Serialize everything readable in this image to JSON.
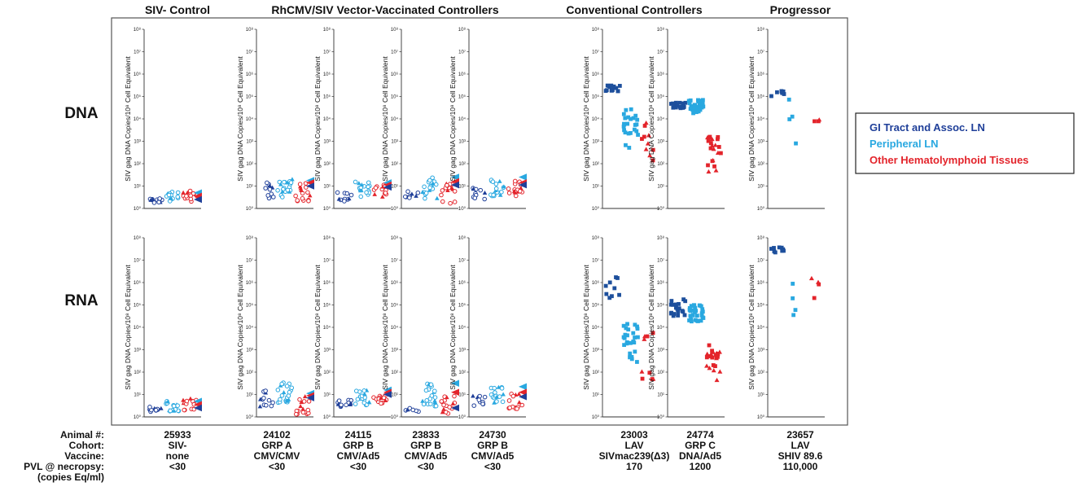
{
  "group_titles": [
    "SIV- Control",
    "RhCMV/SIV Vector-Vaccinated Controllers",
    "Conventional Controllers",
    "Progressor"
  ],
  "row_labels": [
    "DNA",
    "RNA"
  ],
  "y_tick_labels": [
    "10⁰",
    "10¹",
    "10²",
    "10³",
    "10⁴",
    "10⁵",
    "10⁶",
    "10⁷",
    "10⁸"
  ],
  "y_axis_label": "SIV gag DNA Copies/10⁸ Cell Equivalent",
  "legend": [
    {
      "label": "GI Tract and Assoc. LN",
      "color": "#1f3f99"
    },
    {
      "label": "Peripheral LN",
      "color": "#29a8e0"
    },
    {
      "label": "Other Hematolymphoid Tissues",
      "color": "#e3242b"
    }
  ],
  "footer": {
    "row_labels": [
      "Animal #:",
      "Cohort:",
      "Vaccine:",
      "PVL @ necropsy:",
      "(copies Eq/ml)"
    ],
    "columns": [
      {
        "animal": "25933",
        "cohort": "SIV-",
        "vaccine": "none",
        "pvl": "<30"
      },
      {
        "animal": "24102",
        "cohort": "GRP A",
        "vaccine": "CMV/CMV",
        "pvl": "<30"
      },
      {
        "animal": "24115",
        "cohort": "GRP B",
        "vaccine": "CMV/Ad5",
        "pvl": "<30"
      },
      {
        "animal": "23833",
        "cohort": "GRP B",
        "vaccine": "CMV/Ad5",
        "pvl": "<30"
      },
      {
        "animal": "24730",
        "cohort": "GRP B",
        "vaccine": "CMV/Ad5",
        "pvl": "<30"
      },
      {
        "animal": "23003",
        "cohort": "LAV",
        "vaccine": "SIVmac239(Δ3)",
        "pvl": "170"
      },
      {
        "animal": "24774",
        "cohort": "GRP C",
        "vaccine": "DNA/Ad5",
        "pvl": "1200"
      },
      {
        "animal": "23657",
        "cohort": "LAV",
        "vaccine": "SHIV 89.6",
        "pvl": "110,000"
      }
    ]
  },
  "colors": {
    "gi": "#1f3f99",
    "gi_dark": "#1d4f9c",
    "pln": "#29a8e0",
    "other": "#e3242b"
  },
  "chart_data": {
    "type": "scatter",
    "y_scale": "log10",
    "ylim": [
      1,
      100000000
    ],
    "grid": false,
    "legend_position": "right",
    "series": [
      "GI Tract and Assoc. LN",
      "Peripheral LN",
      "Other Hematolymphoid Tissues"
    ],
    "panels": [
      {
        "animal": "25933",
        "row": "DNA",
        "marker": "open-circle",
        "gi": {
          "center_log": 0.35,
          "spread": 0.12,
          "count": 12
        },
        "pln": {
          "center_log": 0.5,
          "spread": 0.25,
          "count": 16
        },
        "other": {
          "center_log": 0.6,
          "spread": 0.3,
          "count": 14
        },
        "arrows": [
          0.7,
          0.55,
          0.4
        ]
      },
      {
        "animal": "24102",
        "row": "DNA",
        "marker": "open-circle",
        "gi": {
          "center_log": 0.8,
          "spread": 0.35,
          "count": 10
        },
        "pln": {
          "center_log": 1.0,
          "spread": 0.5,
          "count": 20
        },
        "other": {
          "center_log": 0.7,
          "spread": 0.45,
          "count": 16
        },
        "arrows": [
          1.25,
          1.15,
          1.0
        ]
      },
      {
        "animal": "24115",
        "row": "DNA",
        "marker": "open-circle",
        "gi": {
          "center_log": 0.55,
          "spread": 0.3,
          "count": 10
        },
        "pln": {
          "center_log": 0.85,
          "spread": 0.35,
          "count": 18
        },
        "other": {
          "center_log": 0.8,
          "spread": 0.3,
          "count": 14
        },
        "arrows": [
          1.15,
          1.05,
          0.95
        ]
      },
      {
        "animal": "23833",
        "row": "DNA",
        "marker": "open-circle",
        "gi": {
          "center_log": 0.65,
          "spread": 0.2,
          "count": 8
        },
        "pln": {
          "center_log": 0.9,
          "spread": 0.5,
          "count": 20
        },
        "other": {
          "center_log": 0.65,
          "spread": 0.45,
          "count": 16
        },
        "arrows": [
          1.4,
          1.2,
          1.05
        ]
      },
      {
        "animal": "24730",
        "row": "DNA",
        "marker": "open-circle",
        "gi": {
          "center_log": 0.75,
          "spread": 0.35,
          "count": 10
        },
        "pln": {
          "center_log": 0.95,
          "spread": 0.4,
          "count": 18
        },
        "other": {
          "center_log": 0.85,
          "spread": 0.4,
          "count": 16
        },
        "arrows": [
          1.4,
          1.15,
          1.05
        ]
      },
      {
        "animal": "23003",
        "row": "DNA",
        "marker": "filled-square",
        "gi": {
          "center_log": 5.35,
          "spread": 0.15,
          "count": 14
        },
        "pln": {
          "center_log": 3.6,
          "spread": 0.9,
          "count": 24
        },
        "other": {
          "center_log": 3.0,
          "spread": 1.0,
          "count": 10
        },
        "arrows": []
      },
      {
        "animal": "24774",
        "row": "DNA",
        "marker": "filled-square",
        "gi": {
          "center_log": 4.6,
          "spread": 0.15,
          "count": 20
        },
        "pln": {
          "center_log": 4.55,
          "spread": 0.3,
          "count": 34
        },
        "other": {
          "center_log": 2.4,
          "spread": 0.9,
          "count": 22
        },
        "arrows": []
      },
      {
        "animal": "23657",
        "row": "DNA",
        "marker": "filled-square",
        "gi": {
          "center_log": 5.1,
          "spread": 0.15,
          "count": 7
        },
        "pln": {
          "center_log": 4.0,
          "spread": 1.1,
          "count": 4
        },
        "other": {
          "center_log": 4.05,
          "spread": 0.2,
          "count": 3
        },
        "arrows": []
      },
      {
        "animal": "25933",
        "row": "RNA",
        "marker": "open-circle",
        "gi": {
          "center_log": 0.35,
          "spread": 0.12,
          "count": 12
        },
        "pln": {
          "center_log": 0.5,
          "spread": 0.25,
          "count": 16
        },
        "other": {
          "center_log": 0.6,
          "spread": 0.3,
          "count": 14
        },
        "arrows": [
          0.7,
          0.55,
          0.4
        ]
      },
      {
        "animal": "24102",
        "row": "RNA",
        "marker": "open-circle",
        "gi": {
          "center_log": 0.8,
          "spread": 0.4,
          "count": 12
        },
        "pln": {
          "center_log": 1.0,
          "spread": 0.55,
          "count": 22
        },
        "other": {
          "center_log": 0.55,
          "spread": 0.45,
          "count": 16
        },
        "arrows": [
          1.05,
          0.95,
          0.85
        ]
      },
      {
        "animal": "24115",
        "row": "RNA",
        "marker": "open-circle",
        "gi": {
          "center_log": 0.5,
          "spread": 0.25,
          "count": 12
        },
        "pln": {
          "center_log": 0.85,
          "spread": 0.35,
          "count": 20
        },
        "other": {
          "center_log": 0.8,
          "spread": 0.2,
          "count": 16
        },
        "arrows": [
          1.2,
          1.1,
          1.0
        ]
      },
      {
        "animal": "23833",
        "row": "RNA",
        "marker": "open-circle",
        "gi": {
          "center_log": 0.3,
          "spread": 0.1,
          "count": 6
        },
        "pln": {
          "center_log": 1.0,
          "spread": 0.55,
          "count": 22
        },
        "other": {
          "center_log": 0.55,
          "spread": 0.4,
          "count": 16
        },
        "arrows": [
          1.5,
          1.1,
          0.4
        ]
      },
      {
        "animal": "24730",
        "row": "RNA",
        "marker": "open-circle",
        "gi": {
          "center_log": 0.7,
          "spread": 0.3,
          "count": 10
        },
        "pln": {
          "center_log": 0.95,
          "spread": 0.4,
          "count": 16
        },
        "other": {
          "center_log": 0.7,
          "spread": 0.35,
          "count": 14
        },
        "arrows": [
          1.35,
          1.1,
          0.9
        ]
      },
      {
        "animal": "23003",
        "row": "RNA",
        "marker": "filled-square",
        "gi": {
          "center_log": 5.7,
          "spread": 0.6,
          "count": 9
        },
        "pln": {
          "center_log": 3.3,
          "spread": 1.0,
          "count": 26
        },
        "other": {
          "center_log": 2.8,
          "spread": 1.2,
          "count": 10
        },
        "arrows": []
      },
      {
        "animal": "24774",
        "row": "RNA",
        "marker": "filled-square",
        "gi": {
          "center_log": 4.9,
          "spread": 0.4,
          "count": 20
        },
        "pln": {
          "center_log": 4.6,
          "spread": 0.4,
          "count": 34
        },
        "other": {
          "center_log": 2.3,
          "spread": 0.9,
          "count": 24
        },
        "arrows": []
      },
      {
        "animal": "23657",
        "row": "RNA",
        "marker": "filled-square",
        "gi": {
          "center_log": 7.45,
          "spread": 0.12,
          "count": 9
        },
        "pln": {
          "center_log": 6.0,
          "spread": 1.5,
          "count": 4
        },
        "other": {
          "center_log": 5.7,
          "spread": 0.5,
          "count": 4
        },
        "arrows": []
      }
    ]
  }
}
